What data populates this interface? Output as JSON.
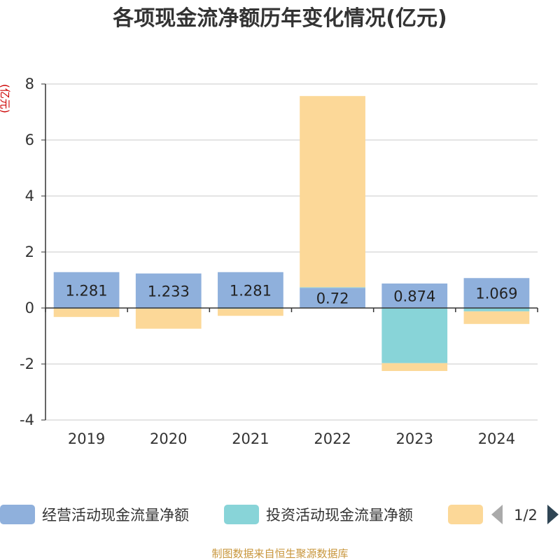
{
  "chart_data": {
    "type": "bar",
    "stacked": true,
    "title": "各项现金流净额历年变化情况(亿元)",
    "ylabel": "(亿元)",
    "xlabel": "",
    "ylim": [
      -4,
      8
    ],
    "yticks": [
      -4,
      -2,
      0,
      2,
      4,
      6,
      8
    ],
    "grid": true,
    "categories": [
      "2019",
      "2020",
      "2021",
      "2022",
      "2023",
      "2024"
    ],
    "series": [
      {
        "name": "经营活动现金流量净额",
        "color": "#8fb0dc",
        "values": [
          1.281,
          1.233,
          1.281,
          0.72,
          0.874,
          1.069
        ],
        "labels": [
          "1.281",
          "1.233",
          "1.281",
          "0.72",
          "0.874",
          "1.069"
        ]
      },
      {
        "name": "投资活动现金流量净额",
        "color": "#88d4d8",
        "values": [
          -0.02,
          -0.02,
          -0.03,
          0.02,
          -1.97,
          -0.12
        ],
        "labels": []
      },
      {
        "name": "",
        "color": "#fcd898",
        "values": [
          -0.3,
          -0.72,
          -0.25,
          6.83,
          -0.28,
          -0.45
        ],
        "labels": []
      }
    ],
    "legend_position": "bottom"
  },
  "legend": {
    "page": "1/2"
  },
  "source": "制图数据来自恒生聚源数据库"
}
